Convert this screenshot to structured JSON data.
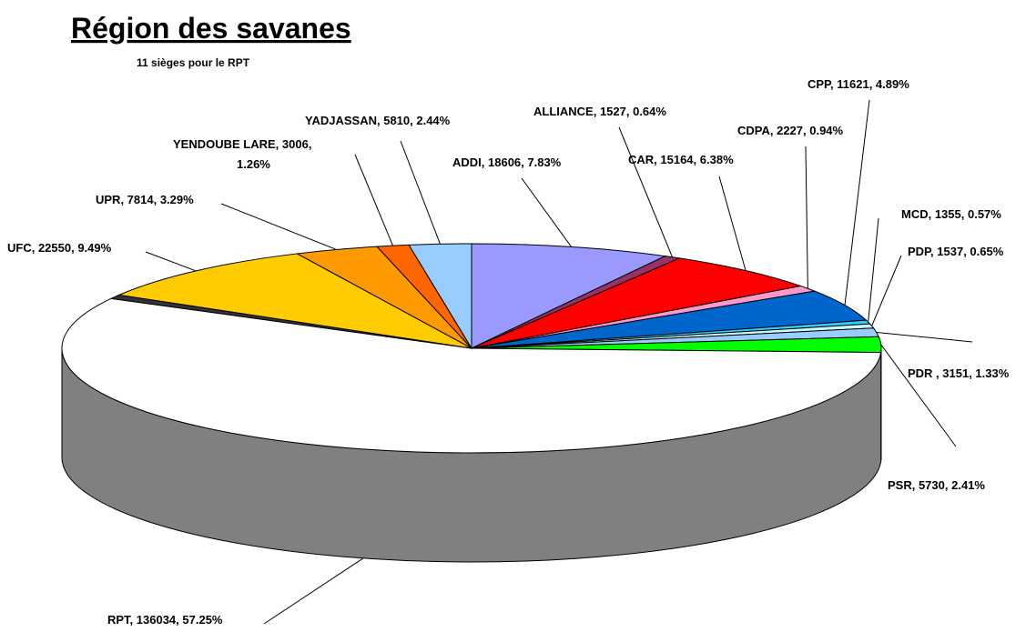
{
  "chart_data": {
    "type": "pie3d",
    "title": "Région des savanes",
    "subtitle": "11 sièges pour le RPT",
    "data_labels": [
      "ADDI, 18606, 7.83%",
      "ALLIANCE, 1527, 0.64%",
      "CAR, 15164, 6.38%",
      "CDPA, 2227, 0.94%",
      "CPP, 11621, 4.89%",
      "MCD, 1355, 0.57%",
      "PDP, 1537, 0.65%",
      "PDR , 3151, 1.33%",
      "PSR, 5730, 2.41%",
      "RPT, 136034, 57.25%",
      null,
      "UFC, 22550, 9.49%",
      "UPR, 7814, 3.29%",
      "YENDOUBE LARE, 3006,\n1.26%",
      "YADJASSAN, 5810, 2.44%"
    ],
    "values": [
      18606,
      1527,
      15164,
      2227,
      11621,
      1355,
      1537,
      3151,
      5730,
      136034,
      1482,
      22550,
      7814,
      3006,
      5810
    ],
    "colors": [
      "#9999ff",
      "#993366",
      "#ff0000",
      "#ff99cc",
      "#0066cc",
      "#33ccff",
      "#ccffff",
      "#99ccff",
      "#00ff00",
      "#ffffff",
      "#333333",
      "#ffcc00",
      "#ff9900",
      "#ff6600",
      "#99ccff"
    ]
  }
}
